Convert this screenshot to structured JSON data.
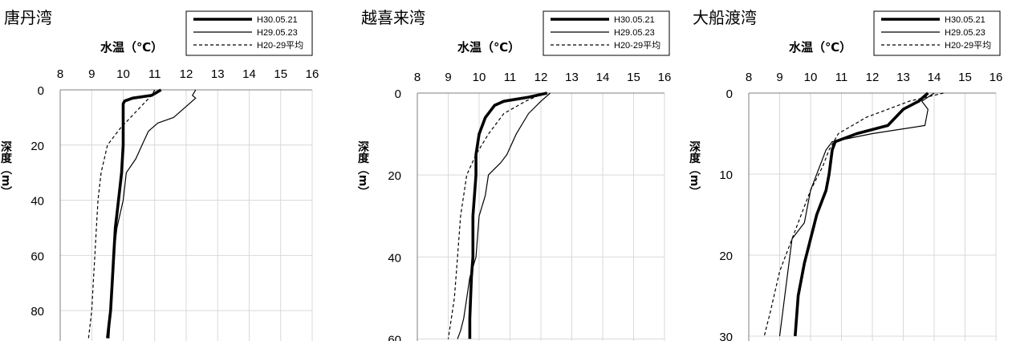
{
  "chart_data": [
    {
      "type": "line",
      "title": "唐丹湾",
      "xlabel": "水温（℃）",
      "ylabel": "深度（m）",
      "xlim": [
        8,
        16
      ],
      "ylim": [
        0,
        90
      ],
      "x_ticks": [
        "8",
        "9",
        "10",
        "11",
        "12",
        "13",
        "14",
        "15",
        "16"
      ],
      "y_ticks": [
        "0",
        "20",
        "40",
        "60",
        "80"
      ],
      "legend_position": "top-right",
      "series": [
        {
          "name": "H30.05.21",
          "style": "thick",
          "x": [
            11.2,
            10.9,
            10.3,
            10.05,
            10.0,
            10.0,
            10.0,
            9.95,
            9.9,
            9.8,
            9.75,
            9.7,
            9.65,
            9.6,
            9.55,
            9.5
          ],
          "y": [
            0,
            2,
            3,
            4,
            5,
            10,
            20,
            30,
            35,
            45,
            50,
            60,
            70,
            80,
            85,
            90
          ]
        },
        {
          "name": "H29.05.23",
          "style": "thin",
          "x": [
            12.3,
            12.2,
            12.3,
            11.6,
            11.1,
            10.8,
            10.6,
            10.4,
            10.1,
            10.0,
            9.8,
            9.7,
            9.65,
            9.6,
            9.55
          ],
          "y": [
            0,
            2,
            3,
            10,
            12,
            15,
            20,
            25,
            30,
            40,
            50,
            60,
            70,
            80,
            90
          ]
        },
        {
          "name": "H20-29平均",
          "style": "dashed",
          "x": [
            11.0,
            10.9,
            10.4,
            9.9,
            9.5,
            9.3,
            9.2,
            9.15,
            9.1,
            9.05,
            9.0,
            8.95,
            8.9
          ],
          "y": [
            0,
            2,
            8,
            14,
            20,
            30,
            40,
            50,
            60,
            70,
            80,
            85,
            90
          ]
        }
      ]
    },
    {
      "type": "line",
      "title": "越喜来湾",
      "xlabel": "水温（℃）",
      "ylabel": "深度（m）",
      "xlim": [
        8,
        16
      ],
      "ylim": [
        0,
        60
      ],
      "x_ticks": [
        "8",
        "9",
        "10",
        "11",
        "12",
        "13",
        "14",
        "15",
        "16"
      ],
      "y_ticks": [
        "0",
        "20",
        "40",
        "60"
      ],
      "legend_position": "top-right",
      "series": [
        {
          "name": "H30.05.21",
          "style": "thick",
          "x": [
            12.2,
            11.6,
            10.8,
            10.5,
            10.2,
            10.0,
            9.9,
            9.9,
            9.85,
            9.8,
            9.8,
            9.75,
            9.7,
            9.7
          ],
          "y": [
            0,
            1,
            2,
            3,
            6,
            10,
            15,
            20,
            25,
            30,
            40,
            45,
            55,
            60
          ]
        },
        {
          "name": "H29.05.23",
          "style": "thin",
          "x": [
            12.3,
            12.0,
            11.6,
            11.2,
            10.9,
            10.7,
            10.3,
            10.2,
            10.0,
            9.9,
            9.7,
            9.6,
            9.5,
            9.4,
            9.3
          ],
          "y": [
            0,
            2,
            5,
            10,
            15,
            17,
            20,
            25,
            30,
            40,
            45,
            50,
            55,
            58,
            60
          ]
        },
        {
          "name": "H20-29平均",
          "style": "dashed",
          "x": [
            12.1,
            11.5,
            10.8,
            10.3,
            9.9,
            9.6,
            9.4,
            9.3,
            9.2,
            9.1,
            9.0
          ],
          "y": [
            0,
            2,
            5,
            10,
            15,
            20,
            30,
            40,
            50,
            55,
            60
          ]
        }
      ]
    },
    {
      "type": "line",
      "title": "大船渡湾",
      "xlabel": "水温（℃）",
      "ylabel": "深度（m）",
      "xlim": [
        8,
        16
      ],
      "ylim": [
        0,
        30
      ],
      "x_ticks": [
        "8",
        "9",
        "10",
        "11",
        "12",
        "13",
        "14",
        "15",
        "16"
      ],
      "y_ticks": [
        "0",
        "10",
        "20",
        "30"
      ],
      "legend_position": "top-right",
      "series": [
        {
          "name": "H30.05.21",
          "style": "thick",
          "x": [
            13.8,
            13.5,
            13.0,
            12.5,
            11.5,
            10.8,
            10.7,
            10.6,
            10.5,
            10.2,
            10.0,
            9.8,
            9.6,
            9.5
          ],
          "y": [
            0,
            1,
            2,
            4,
            5,
            6,
            7,
            10,
            12,
            15,
            18,
            21,
            25,
            30
          ]
        },
        {
          "name": "H29.05.23",
          "style": "thin",
          "x": [
            14.0,
            13.6,
            13.8,
            13.7,
            12.0,
            10.7,
            10.5,
            10.2,
            10.0,
            9.8,
            9.4,
            9.2,
            9.0
          ],
          "y": [
            0,
            1,
            2,
            4,
            5,
            6,
            7,
            10,
            12,
            16,
            18,
            24,
            30
          ]
        },
        {
          "name": "H20-29平均",
          "style": "dashed",
          "x": [
            14.3,
            13.2,
            11.8,
            10.9,
            10.6,
            10.4,
            10.0,
            9.7,
            9.4,
            9.0,
            8.7,
            8.5
          ],
          "y": [
            0,
            1,
            3,
            5,
            7,
            9,
            12,
            15,
            18,
            22,
            27,
            30
          ]
        }
      ]
    }
  ]
}
